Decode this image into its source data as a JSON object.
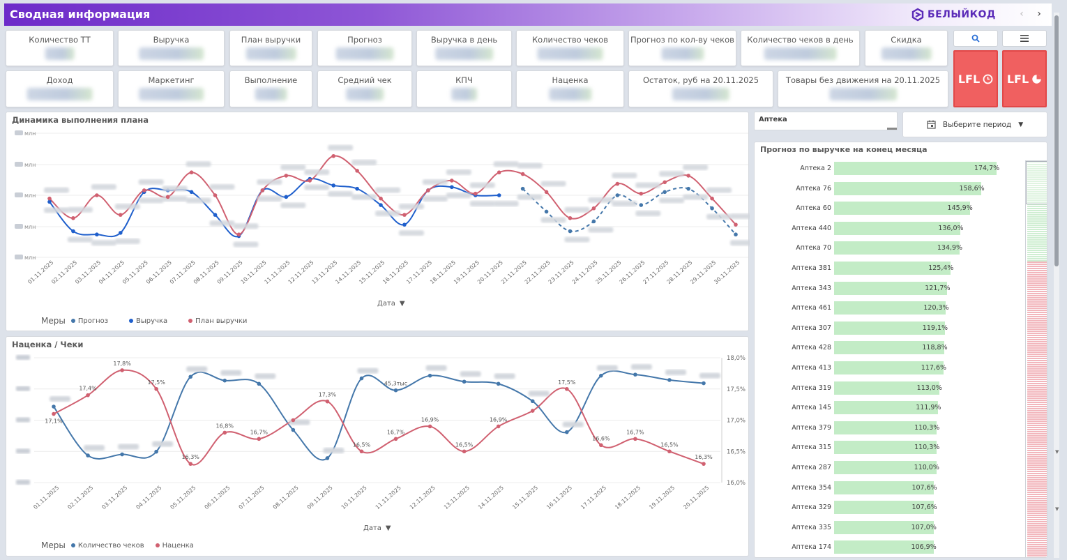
{
  "header": {
    "title": "Сводная информация",
    "logo_text": "БЕЛЫЙКОД",
    "prev": "‹",
    "next": "›"
  },
  "kpis_row1": [
    {
      "label": "Количество ТТ",
      "size": "short"
    },
    {
      "label": "Выручка",
      "size": "long"
    },
    {
      "label": "План выручки",
      "size": "long"
    },
    {
      "label": "Прогноз",
      "size": "long"
    },
    {
      "label": "Выручка в день",
      "size": "long"
    },
    {
      "label": "Количество чеков",
      "size": "long"
    },
    {
      "label": "Прогноз по кол-ву чеков",
      "size": "mid"
    },
    {
      "label": "Количество чеков в день",
      "size": "long"
    },
    {
      "label": "Скидка",
      "size": "long"
    }
  ],
  "kpis_row2": [
    {
      "label": "Доход",
      "size": "long"
    },
    {
      "label": "Маркетинг",
      "size": "long"
    },
    {
      "label": "Выполнение",
      "size": "mid"
    },
    {
      "label": "Средний чек",
      "size": "mid"
    },
    {
      "label": "КПЧ",
      "size": "short"
    },
    {
      "label": "Наценка",
      "size": "mid"
    },
    {
      "label": "Остаток, руб на 20.11.2025",
      "size": "mid"
    },
    {
      "label": "Товары без движения на 20.11.2025",
      "size": "mid"
    }
  ],
  "buttons": {
    "search_icon": "search-icon",
    "menu_icon": "menu-icon",
    "lfl1": "LFL",
    "lfl2": "LFL"
  },
  "filter": {
    "label": "Аптека",
    "period_label": "Выберите период"
  },
  "chart1": {
    "title": "Динамика выполнения плана",
    "axis_selector": "Дата",
    "legend_title": "Меры",
    "y_unit": "млн"
  },
  "chart2": {
    "title": "Наценка / Чеки",
    "axis_selector": "Дата",
    "legend_title": "Меры"
  },
  "forecast": {
    "title": "Прогноз по выручке на конец месяца"
  },
  "chart_data": [
    {
      "type": "line",
      "title": "Динамика выполнения плана",
      "xlabel": "Дата",
      "x": [
        "01.11.2025",
        "02.11.2025",
        "03.11.2025",
        "04.11.2025",
        "05.11.2025",
        "06.11.2025",
        "07.11.2025",
        "08.11.2025",
        "09.11.2025",
        "10.11.2025",
        "11.11.2025",
        "12.11.2025",
        "13.11.2025",
        "14.11.2025",
        "15.11.2025",
        "16.11.2025",
        "17.11.2025",
        "18.11.2025",
        "19.11.2025",
        "20.11.2025",
        "21.11.2025",
        "22.11.2025",
        "23.11.2025",
        "24.11.2025",
        "25.11.2025",
        "26.11.2025",
        "27.11.2025",
        "28.11.2025",
        "29.11.2025",
        "30.11.2025"
      ],
      "y_ticks": [
        "млн",
        "млн",
        "млн",
        "млн",
        "млн"
      ],
      "series": [
        {
          "name": "Прогноз",
          "color": "#4477aa",
          "dashed": true,
          "values": [
            null,
            null,
            null,
            null,
            null,
            null,
            null,
            null,
            null,
            null,
            null,
            null,
            null,
            null,
            null,
            null,
            null,
            null,
            null,
            null,
            3.1,
            2.4,
            1.8,
            2.1,
            2.9,
            2.6,
            3.0,
            3.1,
            2.5,
            1.7
          ]
        },
        {
          "name": "Выручка",
          "color": "#1f5fcc",
          "values": [
            2.7,
            1.8,
            1.7,
            1.75,
            3.0,
            3.05,
            3.0,
            2.3,
            1.65,
            3.05,
            2.85,
            3.4,
            3.2,
            3.1,
            2.6,
            2.0,
            3.05,
            3.15,
            2.9,
            2.9,
            null,
            null,
            null,
            null,
            null,
            null,
            null,
            null,
            null,
            null
          ]
        },
        {
          "name": "План выручки",
          "color": "#d06070",
          "values": [
            2.8,
            2.2,
            2.9,
            2.3,
            3.05,
            2.85,
            3.6,
            2.9,
            1.7,
            3.05,
            3.5,
            3.35,
            4.1,
            3.65,
            2.8,
            2.3,
            3.05,
            3.35,
            2.95,
            3.6,
            3.55,
            3.0,
            2.2,
            2.5,
            3.25,
            2.95,
            3.3,
            3.5,
            2.8,
            2.0
          ]
        }
      ]
    },
    {
      "type": "line",
      "title": "Наценка / Чеки",
      "xlabel": "Дата",
      "x": [
        "01.11.2025",
        "02.11.2025",
        "03.11.2025",
        "04.11.2025",
        "05.11.2025",
        "06.11.2025",
        "07.11.2025",
        "08.11.2025",
        "09.11.2025",
        "10.11.2025",
        "11.11.2025",
        "12.11.2025",
        "13.11.2025",
        "14.11.2025",
        "15.11.2025",
        "16.11.2025",
        "17.11.2025",
        "18.11.2025",
        "19.11.2025",
        "20.11.2025"
      ],
      "y2_ticks": [
        "18,0%",
        "17,5%",
        "17,0%",
        "16,5%",
        "16,0%"
      ],
      "y2lim": [
        16.0,
        18.0
      ],
      "series": [
        {
          "name": "Количество чеков",
          "color": "#4477aa",
          "axis": "left",
          "values": [
            3.4,
            2.5,
            2.52,
            2.57,
            3.95,
            3.88,
            3.82,
            2.97,
            2.45,
            3.92,
            3.7,
            3.97,
            3.86,
            3.82,
            3.5,
            2.93,
            3.97,
            3.99,
            3.89,
            3.83
          ],
          "labels": [
            "",
            "",
            "",
            "",
            "",
            "",
            "",
            "",
            "",
            "",
            "45,3тыс",
            "",
            "",
            "",
            "",
            "",
            "",
            "",
            "",
            ""
          ]
        },
        {
          "name": "Наценка",
          "color": "#d06070",
          "axis": "right",
          "values": [
            17.1,
            17.4,
            17.8,
            17.5,
            16.3,
            16.8,
            16.7,
            17.0,
            17.3,
            16.5,
            16.7,
            16.9,
            16.5,
            16.9,
            17.15,
            17.5,
            16.6,
            16.7,
            16.5,
            16.3
          ],
          "labels": [
            "17,1%",
            "17,4%",
            "17,8%",
            "17,5%",
            "16,3%",
            "16,8%",
            "16,7%",
            "",
            "17,3%",
            "16,5%",
            "16,7%",
            "16,9%",
            "16,5%",
            "16,9%",
            "",
            "17,5%",
            "16,6%",
            "16,7%",
            "16,5%",
            "16,3%"
          ]
        }
      ]
    },
    {
      "type": "bar",
      "title": "Прогноз по выручке на конец месяца",
      "categories": [
        "Аптека 2",
        "Аптека 76",
        "Аптека 60",
        "Аптека 440",
        "Аптека 70",
        "Аптека 381",
        "Аптека 343",
        "Аптека 461",
        "Аптека 307",
        "Аптека 428",
        "Аптека 413",
        "Аптека 319",
        "Аптека 145",
        "Аптека 379",
        "Аптека 315",
        "Аптека 287",
        "Аптека 354",
        "Аптека 329",
        "Аптека 335",
        "Аптека 174"
      ],
      "values": [
        174.7,
        158.6,
        145.9,
        136.0,
        134.9,
        125.4,
        121.7,
        120.3,
        119.1,
        118.8,
        117.6,
        113.0,
        111.9,
        110.3,
        110.3,
        110.0,
        107.6,
        107.6,
        107.0,
        106.9
      ],
      "labels": [
        "174,7%",
        "158,6%",
        "145,9%",
        "136,0%",
        "134,9%",
        "125,4%",
        "121,7%",
        "120,3%",
        "119,1%",
        "118,8%",
        "117,6%",
        "113,0%",
        "111,9%",
        "110,3%",
        "110,3%",
        "110,0%",
        "107,6%",
        "107,6%",
        "107,0%",
        "106,9%"
      ],
      "bar_color": "#c3ecc6"
    }
  ]
}
